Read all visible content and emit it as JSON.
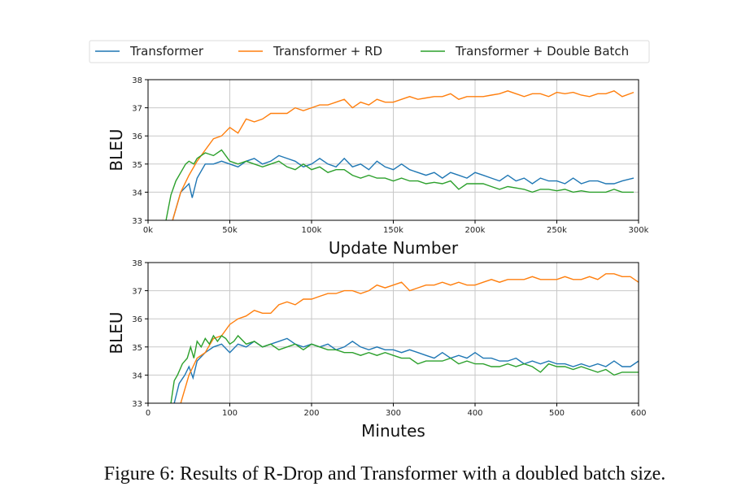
{
  "legend": {
    "placement": "top",
    "entries": [
      {
        "name": "Transformer",
        "color": "#1f77b4"
      },
      {
        "name": "Transformer + RD",
        "color": "#ff7f0e"
      },
      {
        "name": "Transformer + Double Batch",
        "color": "#2ca02c"
      }
    ]
  },
  "caption": "Figure 6: Results of R-Drop and Transformer with a doubled batch size.",
  "chart_data": [
    {
      "type": "line",
      "xlabel": "Update Number",
      "ylabel": "BLEU",
      "xlim": [
        0,
        300000
      ],
      "ylim": [
        33,
        38
      ],
      "xticks": [
        0,
        50000,
        100000,
        150000,
        200000,
        250000,
        300000
      ],
      "xtick_labels": [
        "0k",
        "50k",
        "100k",
        "150k",
        "200k",
        "250k",
        "300k"
      ],
      "yticks": [
        33,
        34,
        35,
        36,
        37,
        38
      ],
      "grid": true,
      "series": [
        {
          "name": "Transformer",
          "color": "#1f77b4",
          "x": [
            15000,
            20000,
            25000,
            27000,
            30000,
            35000,
            40000,
            45000,
            50000,
            55000,
            60000,
            65000,
            70000,
            75000,
            80000,
            85000,
            90000,
            95000,
            100000,
            105000,
            110000,
            115000,
            120000,
            125000,
            130000,
            135000,
            140000,
            145000,
            150000,
            155000,
            160000,
            165000,
            170000,
            175000,
            180000,
            185000,
            190000,
            195000,
            200000,
            205000,
            210000,
            215000,
            220000,
            225000,
            230000,
            235000,
            240000,
            245000,
            250000,
            255000,
            260000,
            265000,
            270000,
            275000,
            280000,
            285000,
            290000,
            297000
          ],
          "y": [
            33.0,
            34.0,
            34.3,
            33.8,
            34.5,
            35.0,
            35.0,
            35.1,
            35.0,
            34.9,
            35.1,
            35.2,
            35.0,
            35.1,
            35.3,
            35.2,
            35.1,
            34.9,
            35.0,
            35.2,
            35.0,
            34.9,
            35.2,
            34.9,
            35.0,
            34.8,
            35.1,
            34.9,
            34.8,
            35.0,
            34.8,
            34.7,
            34.6,
            34.7,
            34.5,
            34.7,
            34.6,
            34.5,
            34.7,
            34.6,
            34.5,
            34.4,
            34.6,
            34.4,
            34.5,
            34.3,
            34.5,
            34.4,
            34.4,
            34.3,
            34.5,
            34.3,
            34.4,
            34.4,
            34.3,
            34.3,
            34.4,
            34.5
          ]
        },
        {
          "name": "Transformer + RD",
          "color": "#ff7f0e",
          "x": [
            15000,
            20000,
            25000,
            30000,
            35000,
            40000,
            45000,
            50000,
            55000,
            60000,
            65000,
            70000,
            75000,
            80000,
            85000,
            90000,
            95000,
            100000,
            105000,
            110000,
            115000,
            120000,
            125000,
            130000,
            135000,
            140000,
            145000,
            150000,
            155000,
            160000,
            165000,
            170000,
            175000,
            180000,
            185000,
            190000,
            195000,
            200000,
            205000,
            210000,
            215000,
            220000,
            225000,
            230000,
            235000,
            240000,
            245000,
            250000,
            255000,
            260000,
            265000,
            270000,
            275000,
            280000,
            285000,
            290000,
            297000
          ],
          "y": [
            33.0,
            34.0,
            34.6,
            35.1,
            35.5,
            35.9,
            36.0,
            36.3,
            36.1,
            36.6,
            36.5,
            36.6,
            36.8,
            36.8,
            36.8,
            37.0,
            36.9,
            37.0,
            37.1,
            37.1,
            37.2,
            37.3,
            37.0,
            37.2,
            37.1,
            37.3,
            37.2,
            37.2,
            37.3,
            37.4,
            37.3,
            37.35,
            37.4,
            37.4,
            37.5,
            37.3,
            37.4,
            37.4,
            37.4,
            37.45,
            37.5,
            37.6,
            37.5,
            37.4,
            37.5,
            37.5,
            37.4,
            37.55,
            37.5,
            37.55,
            37.45,
            37.4,
            37.5,
            37.5,
            37.6,
            37.4,
            37.55
          ]
        },
        {
          "name": "Transformer + Double Batch",
          "color": "#2ca02c",
          "x": [
            11000,
            14000,
            17000,
            20000,
            23000,
            25000,
            28000,
            30000,
            35000,
            40000,
            45000,
            50000,
            55000,
            60000,
            65000,
            70000,
            75000,
            80000,
            85000,
            90000,
            95000,
            100000,
            105000,
            110000,
            115000,
            120000,
            125000,
            130000,
            135000,
            140000,
            145000,
            150000,
            155000,
            160000,
            165000,
            170000,
            175000,
            180000,
            185000,
            190000,
            195000,
            200000,
            205000,
            210000,
            215000,
            220000,
            225000,
            230000,
            235000,
            240000,
            245000,
            250000,
            255000,
            260000,
            265000,
            270000,
            275000,
            280000,
            285000,
            290000,
            297000
          ],
          "y": [
            33.0,
            33.9,
            34.4,
            34.7,
            35.0,
            35.1,
            35.0,
            35.2,
            35.4,
            35.3,
            35.5,
            35.1,
            35.0,
            35.1,
            35.0,
            34.9,
            35.0,
            35.1,
            34.9,
            34.8,
            35.0,
            34.8,
            34.9,
            34.7,
            34.8,
            34.8,
            34.6,
            34.5,
            34.6,
            34.5,
            34.5,
            34.4,
            34.5,
            34.4,
            34.4,
            34.3,
            34.35,
            34.3,
            34.4,
            34.1,
            34.3,
            34.3,
            34.3,
            34.2,
            34.1,
            34.2,
            34.15,
            34.1,
            34.0,
            34.1,
            34.1,
            34.05,
            34.1,
            34.0,
            34.05,
            34.0,
            34.0,
            34.0,
            34.1,
            34.0,
            34.0
          ]
        }
      ]
    },
    {
      "type": "line",
      "xlabel": "Minutes",
      "ylabel": "BLEU",
      "xlim": [
        0,
        600
      ],
      "ylim": [
        33,
        38
      ],
      "xticks": [
        0,
        100,
        200,
        300,
        400,
        500,
        600
      ],
      "xtick_labels": [
        "0",
        "100",
        "200",
        "300",
        "400",
        "500",
        "600"
      ],
      "yticks": [
        33,
        34,
        35,
        36,
        37,
        38
      ],
      "grid": true,
      "series": [
        {
          "name": "Transformer",
          "color": "#1f77b4",
          "x": [
            32,
            38,
            45,
            50,
            55,
            60,
            70,
            80,
            90,
            100,
            110,
            120,
            130,
            140,
            150,
            160,
            170,
            180,
            190,
            200,
            210,
            220,
            230,
            240,
            250,
            260,
            270,
            280,
            290,
            300,
            310,
            320,
            330,
            340,
            350,
            360,
            370,
            380,
            390,
            400,
            410,
            420,
            430,
            440,
            450,
            460,
            470,
            480,
            490,
            500,
            510,
            520,
            530,
            540,
            550,
            560,
            570,
            580,
            590,
            600
          ],
          "y": [
            33.0,
            33.7,
            34.0,
            34.3,
            33.9,
            34.5,
            34.8,
            35.0,
            35.1,
            34.8,
            35.1,
            35.0,
            35.2,
            35.0,
            35.1,
            35.2,
            35.3,
            35.1,
            35.0,
            35.1,
            35.0,
            35.1,
            34.9,
            35.0,
            35.2,
            35.0,
            34.9,
            35.0,
            34.9,
            34.9,
            34.8,
            34.9,
            34.8,
            34.7,
            34.6,
            34.8,
            34.6,
            34.7,
            34.6,
            34.8,
            34.6,
            34.6,
            34.5,
            34.5,
            34.6,
            34.4,
            34.5,
            34.4,
            34.5,
            34.4,
            34.4,
            34.3,
            34.4,
            34.3,
            34.4,
            34.3,
            34.5,
            34.3,
            34.3,
            34.5
          ]
        },
        {
          "name": "Transformer + RD",
          "color": "#ff7f0e",
          "x": [
            40,
            50,
            60,
            70,
            80,
            90,
            100,
            110,
            120,
            130,
            140,
            150,
            160,
            170,
            180,
            190,
            200,
            210,
            220,
            230,
            240,
            250,
            260,
            270,
            280,
            290,
            300,
            310,
            320,
            330,
            340,
            350,
            360,
            370,
            380,
            390,
            400,
            410,
            420,
            430,
            440,
            450,
            460,
            470,
            480,
            490,
            500,
            510,
            520,
            530,
            540,
            550,
            560,
            570,
            580,
            590,
            600
          ],
          "y": [
            33.0,
            34.0,
            34.6,
            34.8,
            35.3,
            35.4,
            35.8,
            36.0,
            36.1,
            36.3,
            36.2,
            36.2,
            36.5,
            36.6,
            36.5,
            36.7,
            36.7,
            36.8,
            36.9,
            36.9,
            37.0,
            37.0,
            36.9,
            37.0,
            37.2,
            37.1,
            37.2,
            37.3,
            37.0,
            37.1,
            37.2,
            37.2,
            37.3,
            37.2,
            37.3,
            37.2,
            37.2,
            37.3,
            37.4,
            37.3,
            37.4,
            37.4,
            37.4,
            37.5,
            37.4,
            37.4,
            37.4,
            37.5,
            37.4,
            37.4,
            37.5,
            37.4,
            37.6,
            37.6,
            37.5,
            37.5,
            37.3
          ]
        },
        {
          "name": "Transformer + Double Batch",
          "color": "#2ca02c",
          "x": [
            28,
            32,
            36,
            42,
            48,
            52,
            56,
            60,
            65,
            70,
            75,
            80,
            85,
            90,
            95,
            100,
            105,
            110,
            120,
            130,
            140,
            150,
            160,
            170,
            180,
            190,
            200,
            210,
            220,
            230,
            240,
            250,
            260,
            270,
            280,
            290,
            300,
            310,
            320,
            330,
            340,
            350,
            360,
            370,
            380,
            390,
            400,
            410,
            420,
            430,
            440,
            450,
            460,
            470,
            480,
            490,
            500,
            510,
            520,
            530,
            540,
            550,
            560,
            570,
            580,
            590,
            600
          ],
          "y": [
            33.0,
            33.8,
            34.0,
            34.4,
            34.6,
            35.0,
            34.6,
            35.2,
            35.0,
            35.3,
            35.1,
            35.4,
            35.2,
            35.4,
            35.3,
            35.1,
            35.2,
            35.4,
            35.1,
            35.2,
            35.0,
            35.1,
            34.9,
            35.0,
            35.1,
            34.9,
            35.1,
            35.0,
            34.9,
            34.9,
            34.8,
            34.8,
            34.7,
            34.8,
            34.7,
            34.8,
            34.7,
            34.6,
            34.6,
            34.4,
            34.5,
            34.5,
            34.5,
            34.6,
            34.4,
            34.5,
            34.4,
            34.4,
            34.3,
            34.3,
            34.4,
            34.3,
            34.4,
            34.3,
            34.1,
            34.4,
            34.3,
            34.3,
            34.2,
            34.3,
            34.2,
            34.1,
            34.2,
            34.0,
            34.1,
            34.1,
            34.1
          ]
        }
      ]
    }
  ]
}
